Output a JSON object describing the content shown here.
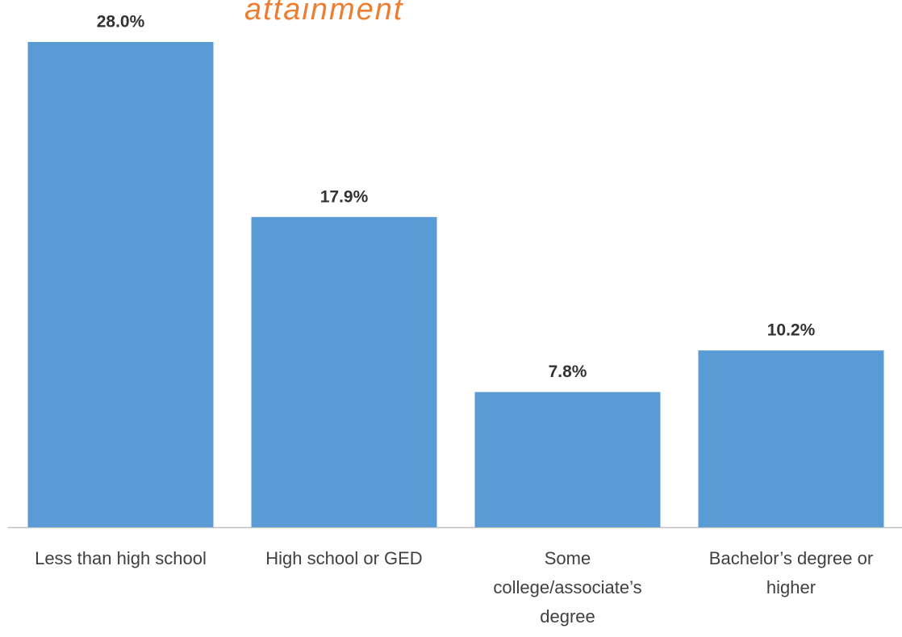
{
  "chart_data": {
    "type": "bar",
    "title": "attainment",
    "categories": [
      "Less than high school",
      "High school or GED",
      "Some college/associate’s degree",
      "Bachelor’s degree or higher"
    ],
    "values": [
      28.0,
      17.9,
      7.8,
      10.2
    ],
    "value_labels": [
      "28.0%",
      "17.9%",
      "7.8%",
      "10.2%"
    ],
    "color": "#5b9bd5"
  }
}
